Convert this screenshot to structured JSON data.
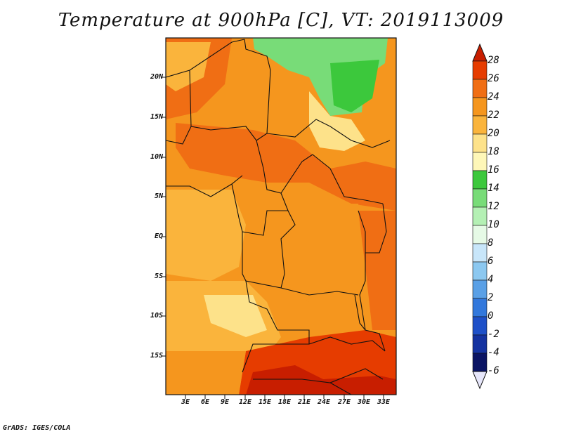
{
  "title": "Temperature at 900hPa [C], VT: 2019113009",
  "credit": "GrADS: IGES/COLA",
  "map": {
    "lat_labels": [
      "20N",
      "15N",
      "10N",
      "5N",
      "EQ",
      "5S",
      "10S",
      "15S"
    ],
    "lon_labels": [
      "3E",
      "6E",
      "9E",
      "12E",
      "15E",
      "18E",
      "21E",
      "24E",
      "27E",
      "30E",
      "33E"
    ]
  },
  "colorbar": {
    "labels": [
      "28",
      "26",
      "24",
      "22",
      "20",
      "18",
      "16",
      "14",
      "12",
      "10",
      "8",
      "6",
      "4",
      "2",
      "0",
      "-2",
      "-4",
      "-6"
    ],
    "colors": [
      "#c81e00",
      "#e63c00",
      "#f06e14",
      "#f5961e",
      "#fab43c",
      "#fde28a",
      "#fef7b8",
      "#3cc83c",
      "#78dc78",
      "#b4f0b4",
      "#e6fae6",
      "#c8e6fa",
      "#8cc8f0",
      "#5aa0e6",
      "#3278dc",
      "#1e50c8",
      "#1432a0",
      "#0a1464"
    ],
    "top_arrow_color": "#c81e00",
    "bottom_arrow_color": "#e6e6fa"
  }
}
